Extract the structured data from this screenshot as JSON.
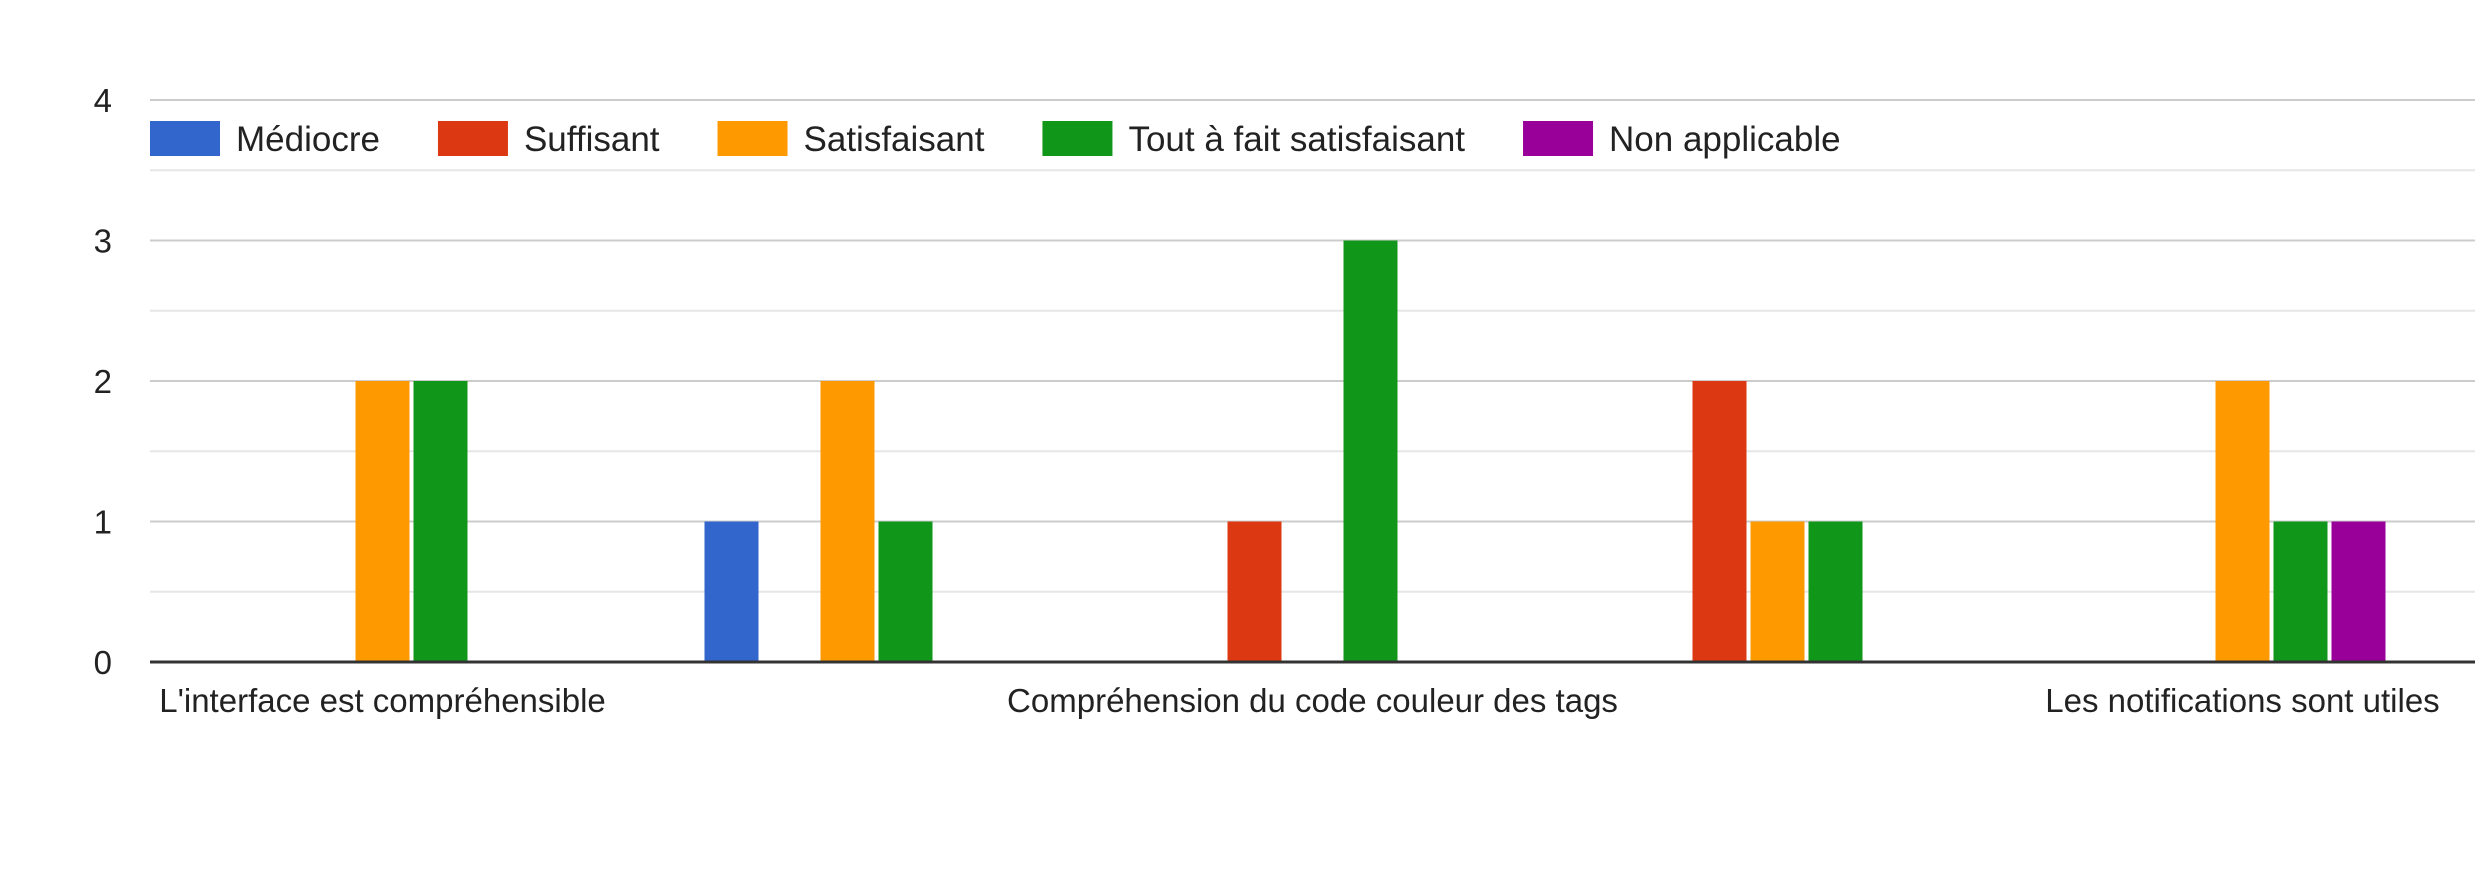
{
  "chart_data": {
    "type": "bar",
    "categories": [
      "L'interface est compréhensible",
      "",
      "Compréhension du code couleur des tags",
      "",
      "Les notifications sont utiles"
    ],
    "series": [
      {
        "name": "Médiocre",
        "color": "#3366cc",
        "values": [
          0,
          1,
          0,
          0,
          0
        ]
      },
      {
        "name": "Suffisant",
        "color": "#dc3912",
        "values": [
          0,
          0,
          1,
          2,
          0
        ]
      },
      {
        "name": "Satisfaisant",
        "color": "#ff9900",
        "values": [
          2,
          2,
          0,
          1,
          2
        ]
      },
      {
        "name": "Tout à fait satisfaisant",
        "color": "#109618",
        "values": [
          2,
          1,
          3,
          1,
          1
        ]
      },
      {
        "name": "Non applicable",
        "color": "#990099",
        "values": [
          0,
          0,
          0,
          0,
          1
        ]
      }
    ],
    "ylim": [
      0,
      4
    ],
    "yticks": [
      "0",
      "1",
      "2",
      "3",
      "4"
    ],
    "legend_position": "top",
    "grid": true,
    "xlabel": "",
    "ylabel": "",
    "title": ""
  }
}
